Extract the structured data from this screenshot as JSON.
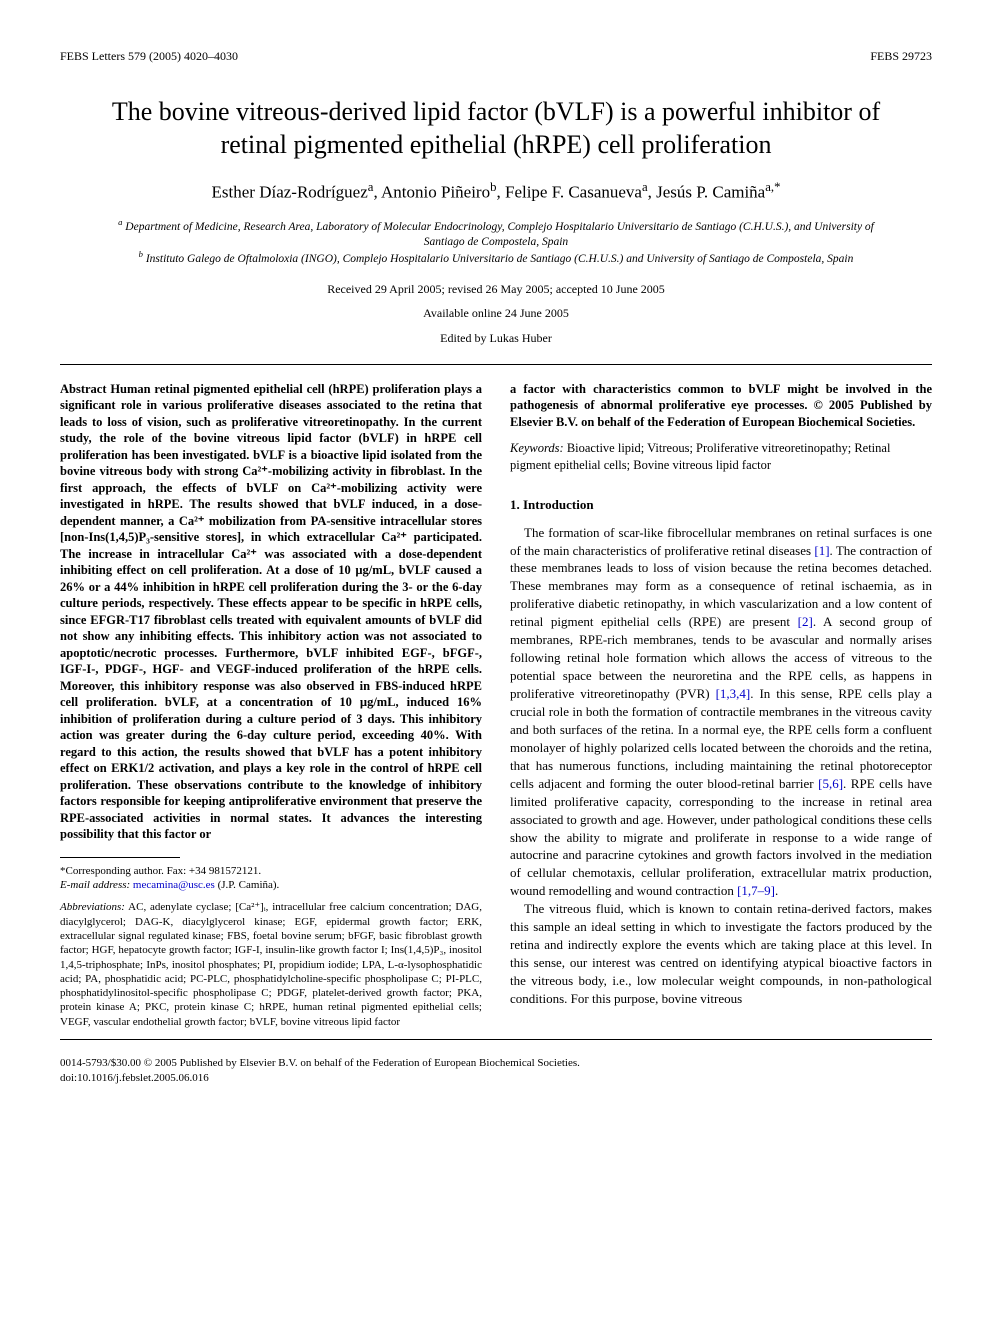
{
  "header": {
    "left": "FEBS Letters 579 (2005) 4020–4030",
    "right": "FEBS 29723"
  },
  "title": "The bovine vitreous-derived lipid factor (bVLF) is a powerful inhibitor of retinal pigmented epithelial (hRPE) cell proliferation",
  "authors_html": "Esther Díaz-Rodríguez<sup>a</sup>, Antonio Piñeiro<sup>b</sup>, Felipe F. Casanueva<sup>a</sup>, Jesús P. Camiña<sup>a,*</sup>",
  "affiliations": {
    "a": "Department of Medicine, Research Area, Laboratory of Molecular Endocrinology, Complejo Hospitalario Universitario de Santiago (C.H.U.S.), and University of Santiago de Compostela, Spain",
    "b": "Instituto Galego de Oftalmoloxia (INGO), Complejo Hospitalario Universitario de Santiago (C.H.U.S.) and University of Santiago de Compostela, Spain"
  },
  "dates": "Received 29 April 2005; revised 26 May 2005; accepted 10 June 2005",
  "available": "Available online 24 June 2005",
  "editor": "Edited by Lukas Huber",
  "abstract_left": "Abstract   Human retinal pigmented epithelial cell (hRPE) proliferation plays a significant role in various proliferative diseases associated to the retina that leads to loss of vision, such as proliferative vitreoretinopathy. In the current study, the role of the bovine vitreous lipid factor (bVLF) in hRPE cell proliferation has been investigated. bVLF is a bioactive lipid isolated from the bovine vitreous body with strong Ca²⁺-mobilizing activity in fibroblast. In the first approach, the effects of bVLF on Ca²⁺-mobilizing activity were investigated in hRPE. The results showed that bVLF induced, in a dose-dependent manner, a Ca²⁺ mobilization from PA-sensitive intracellular stores [non-Ins(1,4,5)P₃-sensitive stores], in which extracellular Ca²⁺ participated. The increase in intracellular Ca²⁺ was associated with a dose-dependent inhibiting effect on cell proliferation. At a dose of 10 µg/mL, bVLF caused a 26% or a 44% inhibition in hRPE cell proliferation during the 3- or the 6-day culture periods, respectively. These effects appear to be specific in hRPE cells, since EFGR-T17 fibroblast cells treated with equivalent amounts of bVLF did not show any inhibiting effects. This inhibitory action was not associated to apoptotic/necrotic processes. Furthermore, bVLF inhibited EGF-, bFGF-, IGF-I-, PDGF-, HGF- and VEGF-induced proliferation of the hRPE cells. Moreover, this inhibitory response was also observed in FBS-induced hRPE cell proliferation. bVLF, at a concentration of 10 µg/mL, induced 16% inhibition of proliferation during a culture period of 3 days. This inhibitory action was greater during the 6-day culture period, exceeding 40%. With regard to this action, the results showed that bVLF has a potent inhibitory effect on ERK1/2 activation, and plays a key role in the control of hRPE cell proliferation. These observations contribute to the knowledge of inhibitory factors responsible for keeping antiproliferative environment that preserve the RPE-associated activities in normal states. It advances the interesting possibility that this factor or",
  "abstract_right_tail": "a factor with characteristics common to bVLF might be involved in the pathogenesis of abnormal proliferative eye processes.\n© 2005 Published by Elsevier B.V. on behalf of the Federation of European Biochemical Societies.",
  "keywords_label": "Keywords:",
  "keywords_text": " Bioactive lipid; Vitreous; Proliferative vitreoretinopathy; Retinal pigment epithelial cells; Bovine vitreous lipid factor",
  "section1_head": "1. Introduction",
  "intro_p1_pre": "The formation of scar-like fibrocellular membranes on retinal surfaces is one of the main characteristics of proliferative retinal diseases ",
  "ref1": "[1]",
  "intro_p1_mid1": ". The contraction of these membranes leads to loss of vision because the retina becomes detached. These membranes may form as a consequence of retinal ischaemia, as in proliferative diabetic retinopathy, in which vascularization and a low content of retinal pigment epithelial cells (RPE) are present ",
  "ref2": "[2]",
  "intro_p1_mid2": ". A second group of membranes, RPE-rich membranes, tends to be avascular and normally arises following retinal hole formation which allows the access of vitreous to the potential space between the neuroretina and the RPE cells, as happens in proliferative vitreoretinopathy (PVR) ",
  "ref134": "[1,3,4]",
  "intro_p1_mid3": ". In this sense, RPE cells play a crucial role in both the formation of contractile membranes in the vitreous cavity and both surfaces of the retina. In a normal eye, the RPE cells form a confluent monolayer of highly polarized cells located between the choroids and the retina, that has numerous functions, including maintaining the retinal photoreceptor cells adjacent and forming the outer blood-retinal barrier ",
  "ref56": "[5,6]",
  "intro_p1_mid4": ". RPE cells have limited proliferative capacity, corresponding to the increase in retinal area associated to growth and age. However, under pathological conditions these cells show the ability to migrate and proliferate in response to a wide range of autocrine and paracrine cytokines and growth factors involved in the mediation of cellular chemotaxis, cellular proliferation, extracellular matrix production, wound remodelling and wound contraction ",
  "ref179": "[1,7–9]",
  "intro_p1_end": ".",
  "intro_p2": "The vitreous fluid, which is known to contain retina-derived factors, makes this sample an ideal setting in which to investigate the factors produced by the retina and indirectly explore the events which are taking place at this level. In this sense, our interest was centred on identifying atypical bioactive factors in the vitreous body, i.e., low molecular weight compounds, in non-pathological conditions. For this purpose, bovine vitreous",
  "corr_author": "*Corresponding author. Fax: +34 981572121.",
  "email_label": "E-mail address:",
  "email": "mecamina@usc.es",
  "email_suffix": " (J.P. Camiña).",
  "abbrev_label": "Abbreviations:",
  "abbrev_text": " AC, adenylate cyclase; [Ca²⁺]ᵢ, intracellular free calcium concentration; DAG, diacylglycerol; DAG-K, diacylglycerol kinase; EGF, epidermal growth factor; ERK, extracellular signal regulated kinase; FBS, foetal bovine serum; bFGF, basic fibroblast growth factor; HGF, hepatocyte growth factor; IGF-I, insulin-like growth factor I; Ins(1,4,5)P₃, inositol 1,4,5-triphosphate; InPs, inositol phosphates; PI, propidium iodide; LPA, L-α-lysophosphatidic acid; PA, phosphatidic acid; PC-PLC, phosphatidylcholine-specific phospholipase C; PI-PLC, phosphatidylinositol-specific phospholipase C; PDGF, platelet-derived growth factor; PKA, protein kinase A; PKC, protein kinase C; hRPE, human retinal pigmented epithelial cells; VEGF, vascular endothelial growth factor; bVLF, bovine vitreous lipid factor",
  "footer": {
    "left_line1": "0014-5793/$30.00 © 2005 Published by Elsevier B.V. on behalf of the Federation of European Biochemical Societies.",
    "left_line2": "doi:10.1016/j.febslet.2005.06.016"
  },
  "colors": {
    "text": "#000000",
    "link": "#0000c8",
    "background": "#ffffff"
  },
  "typography": {
    "body_family": "Times New Roman",
    "title_size_pt": 20,
    "authors_size_pt": 13,
    "body_size_pt": 10,
    "footnote_size_pt": 8
  }
}
